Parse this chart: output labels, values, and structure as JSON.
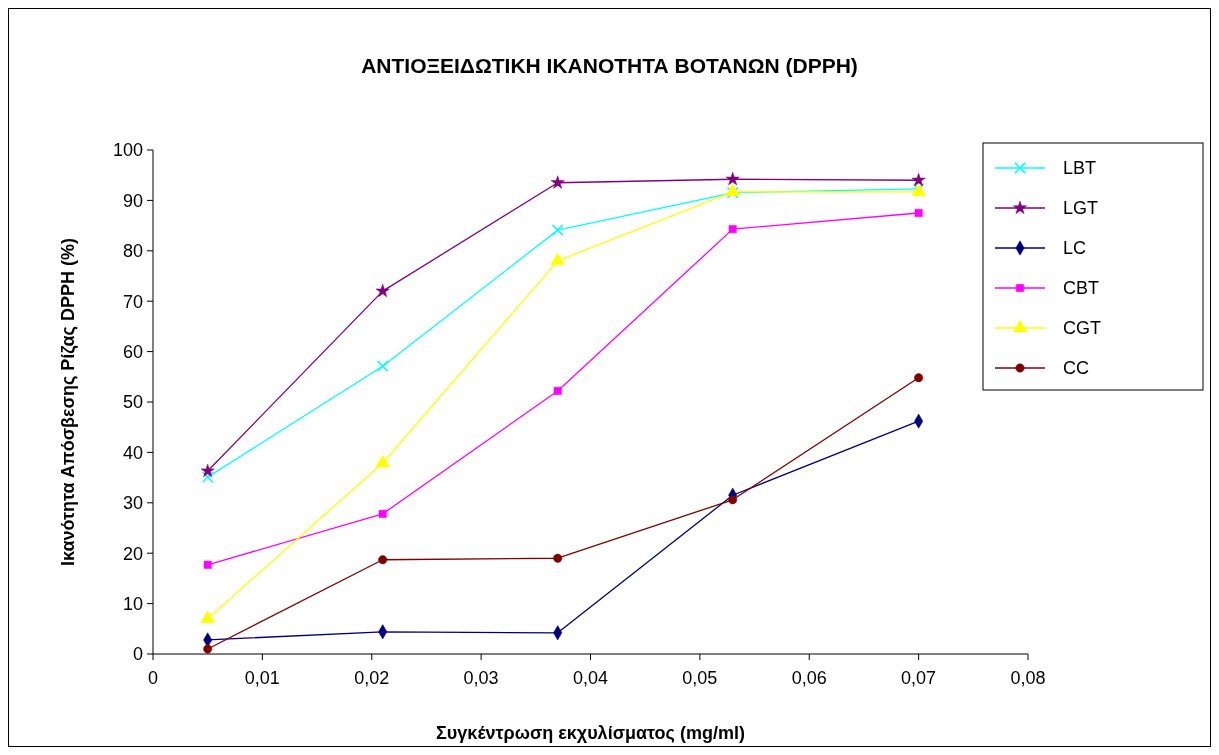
{
  "chart_data": {
    "type": "line",
    "title": "ΑΝΤΙΟΞΕΙΔΩΤΙΚΗ ΙΚΑΝΟΤΗΤΑ ΒΟΤΑΝΩΝ (DPPH)",
    "xlabel": "Συγκέντρωση εκχυλίσματος (mg/ml)",
    "ylabel": "Ικανότητα Απόσβεσης Ρίζας DPPH (%)",
    "x": [
      0.005,
      0.021,
      0.037,
      0.053,
      0.07
    ],
    "series": [
      {
        "name": "LBT",
        "color": "#00ffff",
        "marker": "cross",
        "values": [
          35.1,
          57.1,
          84.1,
          91.5,
          92.3
        ]
      },
      {
        "name": "LGT",
        "color": "#800080",
        "marker": "star",
        "values": [
          36.3,
          72,
          93.5,
          94.2,
          94
        ]
      },
      {
        "name": "LC",
        "color": "#000080",
        "marker": "diamond",
        "values": [
          2.8,
          4.4,
          4.2,
          31.5,
          46.2
        ]
      },
      {
        "name": "CBT",
        "color": "#ff00ff",
        "marker": "square",
        "values": [
          17.7,
          27.8,
          52.2,
          84.3,
          87.5
        ]
      },
      {
        "name": "CGT",
        "color": "#ffff00",
        "marker": "triangle",
        "values": [
          7,
          37.9,
          78,
          91.7,
          91.7
        ]
      },
      {
        "name": "CC",
        "color": "#800000",
        "marker": "circle",
        "values": [
          1,
          18.7,
          19,
          30.6,
          54.8
        ]
      }
    ],
    "xlim": [
      0,
      0.08
    ],
    "xticks": [
      0,
      {
        "value": 0.01,
        "label": "0,01"
      },
      {
        "value": 0.02,
        "label": "0,02"
      },
      {
        "value": 0.03,
        "label": "0,03"
      },
      {
        "value": 0.04,
        "label": "0,04"
      },
      {
        "value": 0.05,
        "label": "0,05"
      },
      {
        "value": 0.06,
        "label": "0,06"
      },
      {
        "value": 0.07,
        "label": "0,07"
      },
      {
        "value": 0.08,
        "label": "0,08"
      }
    ],
    "ylim": [
      0,
      100
    ],
    "yticks": [
      0,
      10,
      20,
      30,
      40,
      50,
      60,
      70,
      80,
      90,
      100
    ],
    "grid": false,
    "legend": "right",
    "line_style": "solid"
  }
}
